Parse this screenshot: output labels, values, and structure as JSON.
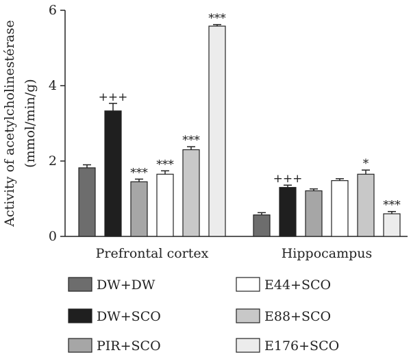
{
  "chart_data": {
    "type": "bar",
    "ylabel_line1": "Activity of acetylcholinestérase",
    "ylabel_line2": "(mmol/min/g)",
    "ylim": [
      0,
      6
    ],
    "yticks": [
      0,
      2,
      4,
      6
    ],
    "grid": false,
    "legend_position": "bottom",
    "categories": [
      "Prefrontal cortex",
      "Hippocampus"
    ],
    "series": [
      {
        "name": "DW+DW",
        "color": "#6d6d6d",
        "values": [
          1.82,
          0.57
        ],
        "errors": [
          0.08,
          0.06
        ],
        "annotations": [
          "",
          ""
        ]
      },
      {
        "name": "DW+SCO",
        "color": "#1f1f1f",
        "values": [
          3.33,
          1.3
        ],
        "errors": [
          0.2,
          0.06
        ],
        "annotations": [
          "+++",
          "+++"
        ]
      },
      {
        "name": "PIR+SCO",
        "color": "#a6a6a6",
        "values": [
          1.45,
          1.21
        ],
        "errors": [
          0.07,
          0.05
        ],
        "annotations": [
          "***",
          ""
        ]
      },
      {
        "name": "E44+SCO",
        "color": "#ffffff",
        "values": [
          1.65,
          1.48
        ],
        "errors": [
          0.09,
          0.05
        ],
        "annotations": [
          "***",
          ""
        ]
      },
      {
        "name": "E88+SCO",
        "color": "#c8c8c8",
        "values": [
          2.3,
          1.65
        ],
        "errors": [
          0.08,
          0.11
        ],
        "annotations": [
          "***",
          "*"
        ]
      },
      {
        "name": "E176+SCO",
        "color": "#ececec",
        "values": [
          5.58,
          0.6
        ],
        "errors": [
          0.04,
          0.06
        ],
        "annotations": [
          "***",
          "***"
        ]
      }
    ]
  }
}
